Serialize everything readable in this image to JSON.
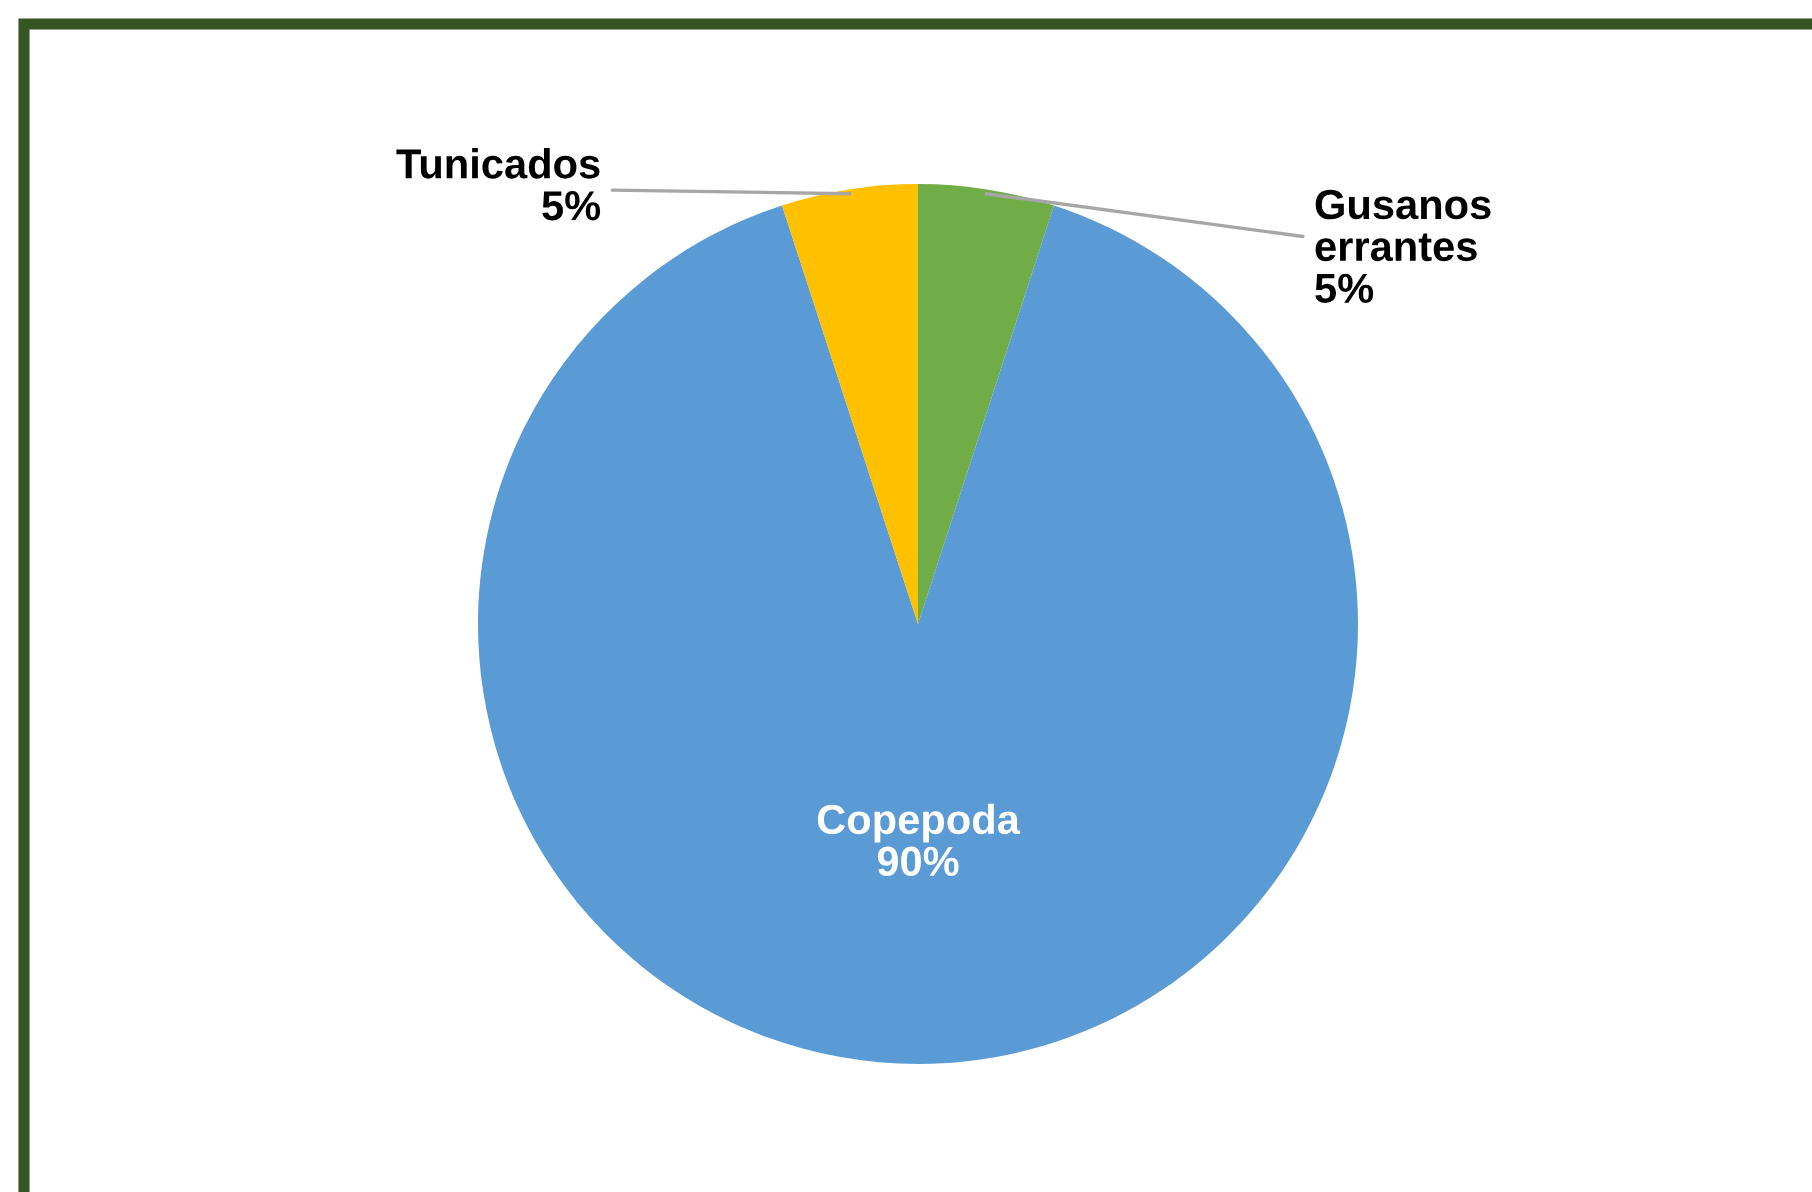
{
  "chart_data": {
    "type": "pie",
    "categories": [
      "Gusanos errantes",
      "Copepoda",
      "Tunicados"
    ],
    "values": [
      5,
      90,
      5
    ],
    "colors": [
      "#70ad47",
      "#5b9bd5",
      "#ffc000"
    ],
    "value_labels": [
      "5%",
      "90%",
      "5%"
    ],
    "legend": false
  }
}
